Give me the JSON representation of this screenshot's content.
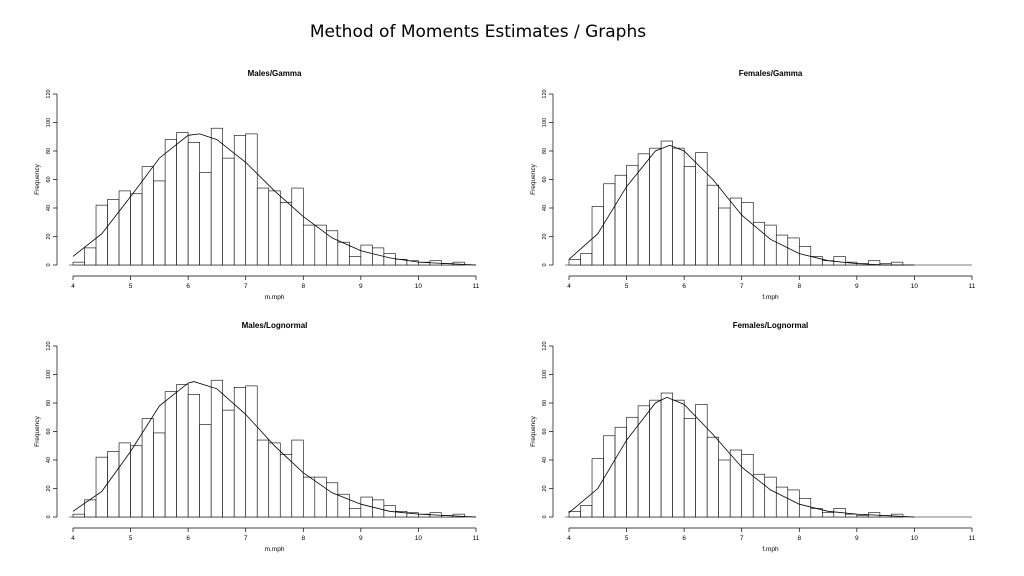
{
  "slide": {
    "title": "Method of Moments Estimates / Graphs"
  },
  "chart_data": [
    {
      "type": "bar",
      "title": "Males/Gamma",
      "xlabel": "m.mph",
      "ylabel": "Frequency",
      "xlim": [
        4,
        11
      ],
      "ylim": [
        0,
        120
      ],
      "xticks": [
        4,
        5,
        6,
        7,
        8,
        9,
        10,
        11
      ],
      "yticks": [
        0,
        20,
        40,
        60,
        80,
        100,
        120
      ],
      "bin_width": 0.2,
      "bins": [
        [
          4.2,
          2
        ],
        [
          4.4,
          12
        ],
        [
          4.6,
          42
        ],
        [
          4.8,
          46
        ],
        [
          5.0,
          52
        ],
        [
          5.2,
          50
        ],
        [
          5.4,
          69
        ],
        [
          5.6,
          59
        ],
        [
          5.8,
          88
        ],
        [
          6.0,
          93
        ],
        [
          6.2,
          86
        ],
        [
          6.4,
          65
        ],
        [
          6.6,
          96
        ],
        [
          6.8,
          75
        ],
        [
          7.0,
          91
        ],
        [
          7.2,
          92
        ],
        [
          7.4,
          54
        ],
        [
          7.6,
          52
        ],
        [
          7.8,
          44
        ],
        [
          8.0,
          54
        ],
        [
          8.2,
          28
        ],
        [
          8.4,
          28
        ],
        [
          8.6,
          24
        ],
        [
          8.8,
          16
        ],
        [
          9.0,
          6
        ],
        [
          9.2,
          14
        ],
        [
          9.4,
          12
        ],
        [
          9.6,
          8
        ],
        [
          9.8,
          4
        ],
        [
          10.0,
          3
        ],
        [
          10.2,
          2
        ],
        [
          10.4,
          3
        ],
        [
          10.6,
          1
        ],
        [
          10.8,
          2
        ],
        [
          11.0,
          0
        ]
      ],
      "curve": [
        [
          4.0,
          6
        ],
        [
          4.5,
          22
        ],
        [
          5.0,
          48
        ],
        [
          5.5,
          75
        ],
        [
          6.0,
          91
        ],
        [
          6.2,
          92
        ],
        [
          6.5,
          88
        ],
        [
          7.0,
          72
        ],
        [
          7.5,
          52
        ],
        [
          8.0,
          34
        ],
        [
          8.5,
          19
        ],
        [
          9.0,
          10
        ],
        [
          9.5,
          5
        ],
        [
          10.0,
          2
        ],
        [
          10.5,
          1
        ],
        [
          11.0,
          0
        ]
      ]
    },
    {
      "type": "bar",
      "title": "Females/Gamma",
      "xlabel": "f.mph",
      "ylabel": "Frequency",
      "xlim": [
        4,
        11
      ],
      "ylim": [
        0,
        120
      ],
      "xticks": [
        4,
        5,
        6,
        7,
        8,
        9,
        10,
        11
      ],
      "yticks": [
        0,
        20,
        40,
        60,
        80,
        100,
        120
      ],
      "bin_width": 0.2,
      "bins": [
        [
          4.2,
          4
        ],
        [
          4.4,
          8
        ],
        [
          4.6,
          41
        ],
        [
          4.8,
          57
        ],
        [
          5.0,
          63
        ],
        [
          5.2,
          70
        ],
        [
          5.4,
          78
        ],
        [
          5.6,
          82
        ],
        [
          5.8,
          87
        ],
        [
          6.0,
          82
        ],
        [
          6.2,
          69
        ],
        [
          6.4,
          79
        ],
        [
          6.6,
          56
        ],
        [
          6.8,
          40
        ],
        [
          7.0,
          47
        ],
        [
          7.2,
          44
        ],
        [
          7.4,
          30
        ],
        [
          7.6,
          28
        ],
        [
          7.8,
          21
        ],
        [
          8.0,
          19
        ],
        [
          8.2,
          13
        ],
        [
          8.4,
          6
        ],
        [
          8.6,
          3
        ],
        [
          8.8,
          6
        ],
        [
          9.0,
          2
        ],
        [
          9.2,
          1
        ],
        [
          9.4,
          3
        ],
        [
          9.6,
          1
        ],
        [
          9.8,
          2
        ],
        [
          10.0,
          0
        ]
      ],
      "curve": [
        [
          4.0,
          4
        ],
        [
          4.5,
          22
        ],
        [
          5.0,
          55
        ],
        [
          5.5,
          80
        ],
        [
          5.75,
          84
        ],
        [
          6.0,
          80
        ],
        [
          6.5,
          60
        ],
        [
          7.0,
          35
        ],
        [
          7.5,
          18
        ],
        [
          8.0,
          8
        ],
        [
          8.5,
          3
        ],
        [
          9.0,
          1
        ],
        [
          9.5,
          0
        ],
        [
          10.0,
          0
        ]
      ]
    },
    {
      "type": "bar",
      "title": "Males/Lognormal",
      "xlabel": "m.mph",
      "ylabel": "Frequency",
      "xlim": [
        4,
        11
      ],
      "ylim": [
        0,
        120
      ],
      "xticks": [
        4,
        5,
        6,
        7,
        8,
        9,
        10,
        11
      ],
      "yticks": [
        0,
        20,
        40,
        60,
        80,
        100,
        120
      ],
      "bin_width": 0.2,
      "bins": [
        [
          4.2,
          2
        ],
        [
          4.4,
          12
        ],
        [
          4.6,
          42
        ],
        [
          4.8,
          46
        ],
        [
          5.0,
          52
        ],
        [
          5.2,
          50
        ],
        [
          5.4,
          69
        ],
        [
          5.6,
          59
        ],
        [
          5.8,
          88
        ],
        [
          6.0,
          93
        ],
        [
          6.2,
          86
        ],
        [
          6.4,
          65
        ],
        [
          6.6,
          96
        ],
        [
          6.8,
          75
        ],
        [
          7.0,
          91
        ],
        [
          7.2,
          92
        ],
        [
          7.4,
          54
        ],
        [
          7.6,
          52
        ],
        [
          7.8,
          44
        ],
        [
          8.0,
          54
        ],
        [
          8.2,
          28
        ],
        [
          8.4,
          28
        ],
        [
          8.6,
          24
        ],
        [
          8.8,
          16
        ],
        [
          9.0,
          6
        ],
        [
          9.2,
          14
        ],
        [
          9.4,
          12
        ],
        [
          9.6,
          8
        ],
        [
          9.8,
          4
        ],
        [
          10.0,
          3
        ],
        [
          10.2,
          2
        ],
        [
          10.4,
          3
        ],
        [
          10.6,
          1
        ],
        [
          10.8,
          2
        ],
        [
          11.0,
          0
        ]
      ],
      "curve": [
        [
          4.0,
          4
        ],
        [
          4.5,
          18
        ],
        [
          5.0,
          46
        ],
        [
          5.5,
          78
        ],
        [
          6.0,
          94
        ],
        [
          6.1,
          95
        ],
        [
          6.5,
          90
        ],
        [
          7.0,
          72
        ],
        [
          7.5,
          50
        ],
        [
          8.0,
          31
        ],
        [
          8.5,
          17
        ],
        [
          9.0,
          9
        ],
        [
          9.5,
          4
        ],
        [
          10.0,
          2
        ],
        [
          10.5,
          1
        ],
        [
          11.0,
          0
        ]
      ]
    },
    {
      "type": "bar",
      "title": "Females/Lognormal",
      "xlabel": "f.mph",
      "ylabel": "Frequency",
      "xlim": [
        4,
        11
      ],
      "ylim": [
        0,
        120
      ],
      "xticks": [
        4,
        5,
        6,
        7,
        8,
        9,
        10,
        11
      ],
      "yticks": [
        0,
        20,
        40,
        60,
        80,
        100,
        120
      ],
      "bin_width": 0.2,
      "bins": [
        [
          4.2,
          4
        ],
        [
          4.4,
          8
        ],
        [
          4.6,
          41
        ],
        [
          4.8,
          57
        ],
        [
          5.0,
          63
        ],
        [
          5.2,
          70
        ],
        [
          5.4,
          78
        ],
        [
          5.6,
          82
        ],
        [
          5.8,
          87
        ],
        [
          6.0,
          82
        ],
        [
          6.2,
          69
        ],
        [
          6.4,
          79
        ],
        [
          6.6,
          56
        ],
        [
          6.8,
          40
        ],
        [
          7.0,
          47
        ],
        [
          7.2,
          44
        ],
        [
          7.4,
          30
        ],
        [
          7.6,
          28
        ],
        [
          7.8,
          21
        ],
        [
          8.0,
          19
        ],
        [
          8.2,
          13
        ],
        [
          8.4,
          6
        ],
        [
          8.6,
          3
        ],
        [
          8.8,
          6
        ],
        [
          9.0,
          2
        ],
        [
          9.2,
          1
        ],
        [
          9.4,
          3
        ],
        [
          9.6,
          1
        ],
        [
          9.8,
          2
        ],
        [
          10.0,
          0
        ]
      ],
      "curve": [
        [
          4.0,
          3
        ],
        [
          4.5,
          20
        ],
        [
          5.0,
          54
        ],
        [
          5.5,
          80
        ],
        [
          5.7,
          84
        ],
        [
          6.0,
          79
        ],
        [
          6.5,
          58
        ],
        [
          7.0,
          35
        ],
        [
          7.5,
          19
        ],
        [
          8.0,
          9
        ],
        [
          8.5,
          4
        ],
        [
          9.0,
          2
        ],
        [
          9.5,
          1
        ],
        [
          10.0,
          0
        ]
      ]
    }
  ]
}
